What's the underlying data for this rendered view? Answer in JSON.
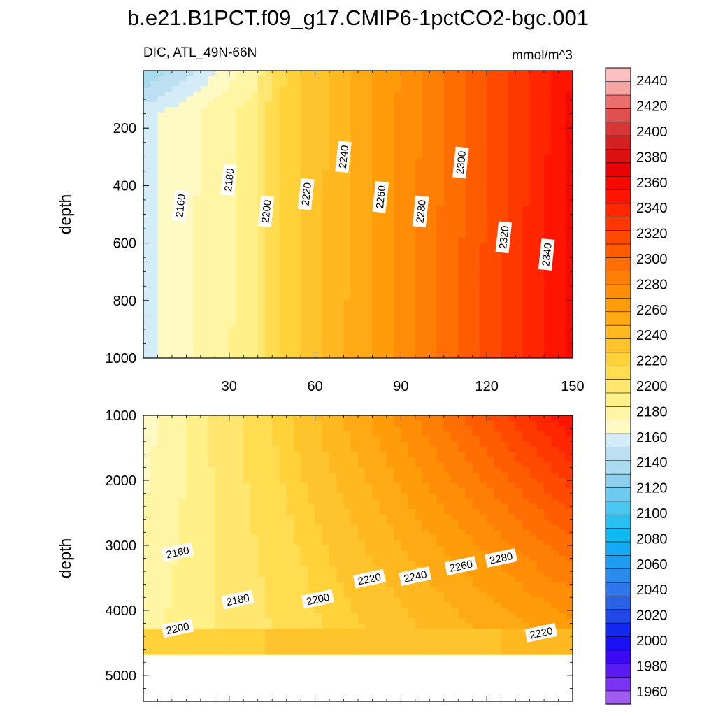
{
  "chart_data": {
    "type": "contour",
    "title": "b.e21.B1PCT.f09_g17.CMIP6-1pctCO2-bgc.001",
    "subtitle_left": "DIC, ATL_49N-66N",
    "units": "mmol/m^3",
    "x_ticks": [
      "30",
      "60",
      "90",
      "120",
      "150"
    ],
    "x_tick_values": [
      30,
      60,
      90,
      120,
      150
    ],
    "xlim": [
      0,
      150
    ],
    "colorbar": {
      "levels": [
        1950,
        1960,
        1970,
        1980,
        1990,
        2000,
        2010,
        2020,
        2030,
        2040,
        2050,
        2060,
        2070,
        2080,
        2090,
        2100,
        2110,
        2120,
        2130,
        2140,
        2150,
        2160,
        2170,
        2180,
        2190,
        2200,
        2210,
        2220,
        2230,
        2240,
        2250,
        2260,
        2270,
        2280,
        2290,
        2300,
        2310,
        2320,
        2330,
        2340,
        2350,
        2360,
        2370,
        2380,
        2390,
        2400,
        2410,
        2420,
        2430,
        2440,
        2450
      ],
      "labels": [
        "1960",
        "1980",
        "2000",
        "2020",
        "2040",
        "2060",
        "2080",
        "2100",
        "2120",
        "2140",
        "2160",
        "2180",
        "2200",
        "2220",
        "2240",
        "2260",
        "2280",
        "2300",
        "2320",
        "2340",
        "2360",
        "2380",
        "2400",
        "2420",
        "2440"
      ],
      "label_values": [
        1960,
        1980,
        2000,
        2020,
        2040,
        2060,
        2080,
        2100,
        2120,
        2140,
        2160,
        2180,
        2200,
        2220,
        2240,
        2260,
        2280,
        2300,
        2320,
        2340,
        2360,
        2380,
        2400,
        2420,
        2440
      ],
      "colors": [
        "#a05cf0",
        "#7a33f0",
        "#5a1af2",
        "#3a0af5",
        "#1a10f5",
        "#1428f0",
        "#2048e6",
        "#2a62e6",
        "#2f76ea",
        "#2a8aee",
        "#1e9cf2",
        "#14aaf4",
        "#10b8f2",
        "#28c0f0",
        "#4ac6f0",
        "#6ecaf0",
        "#8ecfee",
        "#a8daf0",
        "#bddff2",
        "#d3ecf8",
        "#fffac4",
        "#fff5a5",
        "#fff088",
        "#ffe670",
        "#ffdc50",
        "#ffd23a",
        "#ffc42c",
        "#ffb820",
        "#ffaa14",
        "#ff9c0a",
        "#ff8e06",
        "#ff7e04",
        "#ff6e02",
        "#ff5c00",
        "#ff4a00",
        "#ff3800",
        "#ff2600",
        "#ff1400",
        "#f40a00",
        "#e80406",
        "#dc1010",
        "#d42020",
        "#d63636",
        "#e05050",
        "#ec6e6e",
        "#f6a4a4",
        "#fcc0c0"
      ]
    },
    "panels": [
      {
        "name": "upper",
        "ylabel": "depth",
        "ylim": [
          0,
          1000
        ],
        "y_ticks": [
          "200",
          "400",
          "600",
          "800",
          "1000"
        ],
        "y_tick_values": [
          200,
          400,
          600,
          800,
          1000
        ],
        "contour_labels": [
          {
            "text": "2160",
            "x": 13,
            "y": 470
          },
          {
            "text": "2180",
            "x": 30,
            "y": 380
          },
          {
            "text": "2200",
            "x": 43,
            "y": 490
          },
          {
            "text": "2220",
            "x": 57,
            "y": 430
          },
          {
            "text": "2240",
            "x": 70,
            "y": 300
          },
          {
            "text": "2260",
            "x": 83,
            "y": 440
          },
          {
            "text": "2280",
            "x": 97,
            "y": 490
          },
          {
            "text": "2300",
            "x": 111,
            "y": 320
          },
          {
            "text": "2320",
            "x": 126,
            "y": 580
          },
          {
            "text": "2340",
            "x": 141,
            "y": 640
          }
        ]
      },
      {
        "name": "lower",
        "ylabel": "depth",
        "ylim": [
          1000,
          5400
        ],
        "y_ticks": [
          "1000",
          "2000",
          "3000",
          "4000",
          "5000"
        ],
        "y_tick_values": [
          1000,
          2000,
          3000,
          4000,
          5000
        ],
        "contour_labels": [
          {
            "text": "2160",
            "x": 12,
            "y": 3110
          },
          {
            "text": "2180",
            "x": 33,
            "y": 3840
          },
          {
            "text": "2200",
            "x": 12,
            "y": 4280
          },
          {
            "text": "2200",
            "x": 61,
            "y": 3830
          },
          {
            "text": "2220",
            "x": 79,
            "y": 3520
          },
          {
            "text": "2240",
            "x": 95,
            "y": 3480
          },
          {
            "text": "2260",
            "x": 111,
            "y": 3320
          },
          {
            "text": "2280",
            "x": 125,
            "y": 3200
          },
          {
            "text": "2220",
            "x": 139,
            "y": 4350
          }
        ]
      }
    ]
  }
}
